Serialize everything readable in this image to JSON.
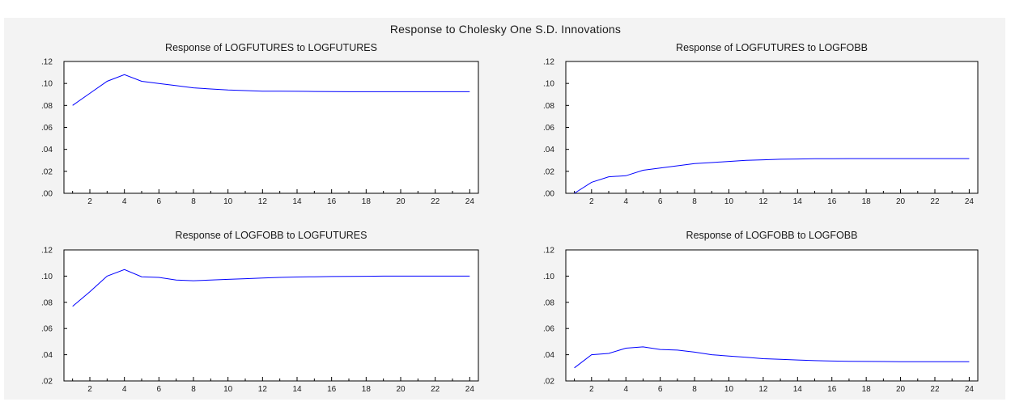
{
  "title": "Response to Cholesky One S.D. Innovations",
  "colors": {
    "line": "#0000ff",
    "figure_bg": "#f3f3f3",
    "plot_bg": "#ffffff",
    "axis": "#000000"
  },
  "chart_data": [
    {
      "type": "line",
      "title": "Response of LOGFUTURES to LOGFUTURES",
      "x": [
        1,
        2,
        3,
        4,
        5,
        6,
        7,
        8,
        9,
        10,
        11,
        12,
        13,
        14,
        15,
        16,
        17,
        18,
        19,
        20,
        21,
        22,
        23,
        24
      ],
      "xticks": [
        2,
        4,
        6,
        8,
        10,
        12,
        14,
        16,
        18,
        20,
        22,
        24
      ],
      "xlim": [
        0.5,
        24.5
      ],
      "ylim": [
        0.0,
        0.12
      ],
      "yticks": [
        0.0,
        0.02,
        0.04,
        0.06,
        0.08,
        0.1,
        0.12
      ],
      "ytick_labels": [
        ".00",
        ".02",
        ".04",
        ".06",
        ".08",
        ".10",
        ".12"
      ],
      "series": [
        {
          "values": [
            0.08,
            0.091,
            0.102,
            0.108,
            0.102,
            0.1,
            0.098,
            0.096,
            0.095,
            0.094,
            0.0935,
            0.093,
            0.093,
            0.0928,
            0.0927,
            0.0926,
            0.0925,
            0.0925,
            0.0925,
            0.0925,
            0.0925,
            0.0925,
            0.0925,
            0.0925
          ]
        }
      ]
    },
    {
      "type": "line",
      "title": "Response of LOGFUTURES to LOGFOBB",
      "x": [
        1,
        2,
        3,
        4,
        5,
        6,
        7,
        8,
        9,
        10,
        11,
        12,
        13,
        14,
        15,
        16,
        17,
        18,
        19,
        20,
        21,
        22,
        23,
        24
      ],
      "xticks": [
        2,
        4,
        6,
        8,
        10,
        12,
        14,
        16,
        18,
        20,
        22,
        24
      ],
      "xlim": [
        0.5,
        24.5
      ],
      "ylim": [
        0.0,
        0.12
      ],
      "yticks": [
        0.0,
        0.02,
        0.04,
        0.06,
        0.08,
        0.1,
        0.12
      ],
      "ytick_labels": [
        ".00",
        ".02",
        ".04",
        ".06",
        ".08",
        ".10",
        ".12"
      ],
      "series": [
        {
          "values": [
            0.0,
            0.01,
            0.015,
            0.016,
            0.021,
            0.023,
            0.025,
            0.027,
            0.028,
            0.029,
            0.03,
            0.0305,
            0.031,
            0.0312,
            0.0314,
            0.0315,
            0.0316,
            0.0316,
            0.0316,
            0.0316,
            0.0316,
            0.0316,
            0.0316,
            0.0316
          ]
        }
      ]
    },
    {
      "type": "line",
      "title": "Response of LOGFOBB to LOGFUTURES",
      "x": [
        1,
        2,
        3,
        4,
        5,
        6,
        7,
        8,
        9,
        10,
        11,
        12,
        13,
        14,
        15,
        16,
        17,
        18,
        19,
        20,
        21,
        22,
        23,
        24
      ],
      "xticks": [
        2,
        4,
        6,
        8,
        10,
        12,
        14,
        16,
        18,
        20,
        22,
        24
      ],
      "xlim": [
        0.5,
        24.5
      ],
      "ylim": [
        0.02,
        0.12
      ],
      "yticks": [
        0.02,
        0.04,
        0.06,
        0.08,
        0.1,
        0.12
      ],
      "ytick_labels": [
        ".02",
        ".04",
        ".06",
        ".08",
        ".10",
        ".12"
      ],
      "series": [
        {
          "values": [
            0.077,
            0.088,
            0.1,
            0.105,
            0.0995,
            0.099,
            0.097,
            0.0965,
            0.097,
            0.0975,
            0.098,
            0.0985,
            0.099,
            0.0993,
            0.0995,
            0.0997,
            0.0998,
            0.0999,
            0.1,
            0.1,
            0.1,
            0.1,
            0.1,
            0.1
          ]
        }
      ]
    },
    {
      "type": "line",
      "title": "Response of LOGFOBB to LOGFOBB",
      "x": [
        1,
        2,
        3,
        4,
        5,
        6,
        7,
        8,
        9,
        10,
        11,
        12,
        13,
        14,
        15,
        16,
        17,
        18,
        19,
        20,
        21,
        22,
        23,
        24
      ],
      "xticks": [
        2,
        4,
        6,
        8,
        10,
        12,
        14,
        16,
        18,
        20,
        22,
        24
      ],
      "xlim": [
        0.5,
        24.5
      ],
      "ylim": [
        0.02,
        0.12
      ],
      "yticks": [
        0.02,
        0.04,
        0.06,
        0.08,
        0.1,
        0.12
      ],
      "ytick_labels": [
        ".02",
        ".04",
        ".06",
        ".08",
        ".10",
        ".12"
      ],
      "series": [
        {
          "values": [
            0.03,
            0.04,
            0.041,
            0.045,
            0.046,
            0.044,
            0.0435,
            0.042,
            0.04,
            0.039,
            0.038,
            0.037,
            0.0365,
            0.036,
            0.0355,
            0.0352,
            0.035,
            0.0349,
            0.0348,
            0.0347,
            0.0347,
            0.0347,
            0.0347,
            0.0347
          ]
        }
      ]
    }
  ]
}
